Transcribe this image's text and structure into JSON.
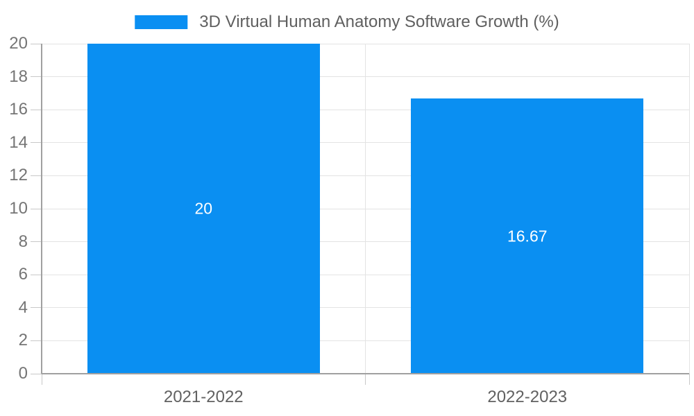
{
  "chart_data": {
    "type": "bar",
    "title": "3D Virtual Human Anatomy Software Growth (%)",
    "categories": [
      "2021-2022",
      "2022-2023"
    ],
    "values": [
      20,
      16.67
    ],
    "bar_labels": [
      "20",
      "16.67"
    ],
    "xlabel": "",
    "ylabel": "",
    "ylim": [
      0,
      20
    ],
    "yticks": [
      0,
      2,
      4,
      6,
      8,
      10,
      12,
      14,
      16,
      18,
      20
    ],
    "grid": true,
    "legend_position": "top-center",
    "bar_color": "#0a8ff2",
    "bar_label_color": "#ffffff"
  },
  "colors": {
    "background": "#ffffff",
    "bar": "#0a8ff2",
    "grid": "#e3e3e3",
    "axis": "#a0a0a0",
    "tick": "#c8c8c8",
    "title_text": "#5f5f5f",
    "y_label_text": "#757575",
    "x_label_text": "#616161"
  }
}
